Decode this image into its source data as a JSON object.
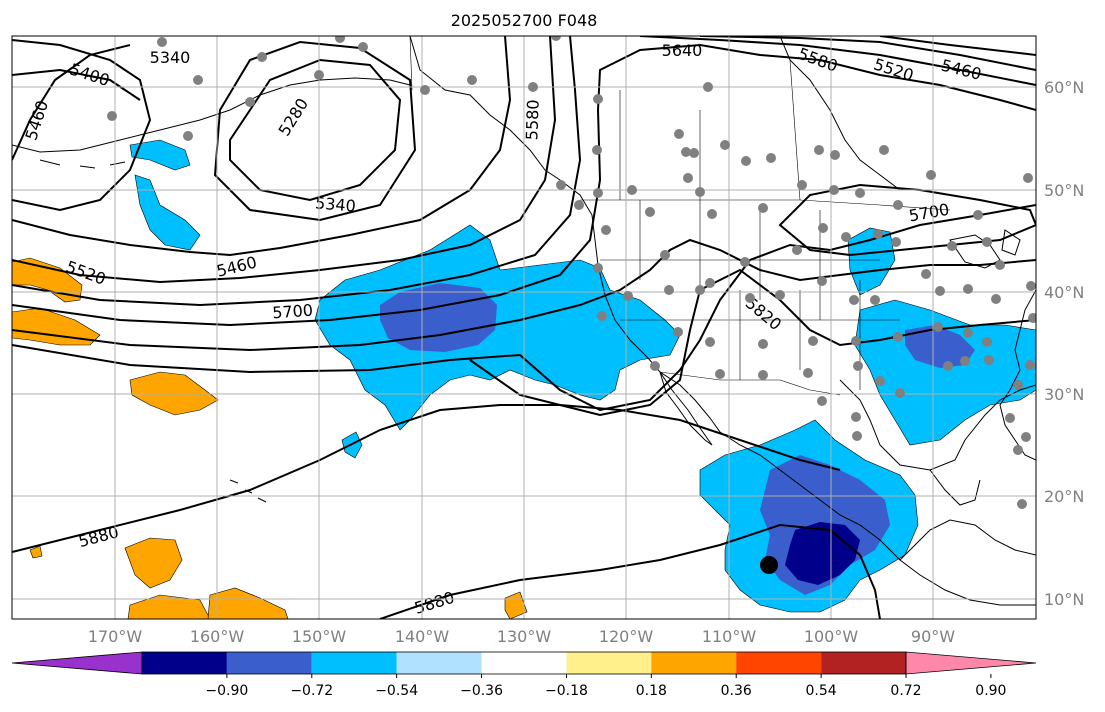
{
  "title": "2025052700 F048",
  "map": {
    "lat_labels": [
      "60°N",
      "50°N",
      "40°N",
      "30°N",
      "20°N",
      "10°N"
    ],
    "lon_labels": [
      "170°W",
      "160°W",
      "150°W",
      "140°W",
      "130°W",
      "120°W",
      "110°W",
      "100°W",
      "90°W"
    ],
    "height_contour_labels": [
      "5340",
      "5400",
      "5460",
      "5280",
      "5580",
      "5640",
      "5580",
      "5520",
      "5460",
      "5340",
      "5460",
      "5520",
      "5700",
      "5820",
      "5700",
      "5880",
      "5880"
    ],
    "colors": {
      "land_outline": "#000000",
      "station_dot": "#808080",
      "grid": "#b0b0b0"
    }
  },
  "colorbar": {
    "ticks": [
      "−0.90",
      "−0.72",
      "−0.54",
      "−0.36",
      "−0.18",
      "0.18",
      "0.36",
      "0.54",
      "0.72",
      "0.90"
    ],
    "colors": [
      "#9932cc",
      "#00008b",
      "#3a5fcd",
      "#00bfff",
      "#b0e2ff",
      "#ffffff",
      "#fff08c",
      "#ffa500",
      "#ff4500",
      "#b22222",
      "#ff88aa"
    ]
  }
}
